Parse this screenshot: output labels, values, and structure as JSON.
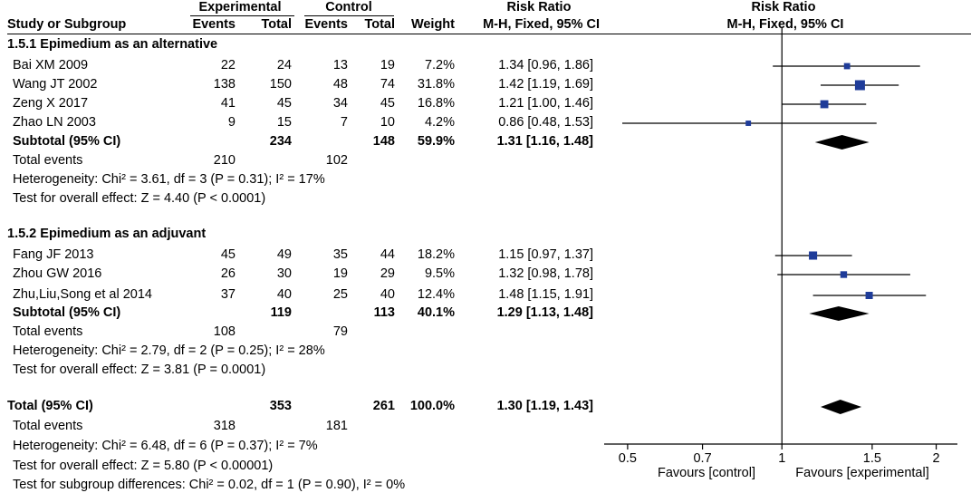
{
  "header": {
    "col_study": "Study or Subgroup",
    "group_experimental": "Experimental",
    "group_control": "Control",
    "col_events": "Events",
    "col_total": "Total",
    "col_weight": "Weight",
    "col_rr": "Risk Ratio",
    "col_rr_method": "M-H, Fixed, 95% CI",
    "plot_title": "Risk Ratio",
    "plot_method": "M-H, Fixed, 95% CI"
  },
  "subgroups": [
    {
      "title": "1.5.1 Epimedium as an alternative",
      "studies": [
        {
          "name": "Bai XM 2009",
          "exp_events": "22",
          "exp_total": "24",
          "ctl_events": "13",
          "ctl_total": "19",
          "weight": "7.2%",
          "ci_text": "1.34 [0.96, 1.86]"
        },
        {
          "name": "Wang JT 2002",
          "exp_events": "138",
          "exp_total": "150",
          "ctl_events": "48",
          "ctl_total": "74",
          "weight": "31.8%",
          "ci_text": "1.42 [1.19, 1.69]"
        },
        {
          "name": "Zeng X 2017",
          "exp_events": "41",
          "exp_total": "45",
          "ctl_events": "34",
          "ctl_total": "45",
          "weight": "16.8%",
          "ci_text": "1.21 [1.00, 1.46]"
        },
        {
          "name": "Zhao LN 2003",
          "exp_events": "9",
          "exp_total": "15",
          "ctl_events": "7",
          "ctl_total": "10",
          "weight": "4.2%",
          "ci_text": "0.86 [0.48, 1.53]"
        }
      ],
      "subtotal": {
        "label": "Subtotal (95% CI)",
        "exp_total": "234",
        "ctl_total": "148",
        "weight": "59.9%",
        "ci_text": "1.31 [1.16, 1.48]"
      },
      "total_events": {
        "label": "Total events",
        "exp": "210",
        "ctl": "102"
      },
      "heterogeneity": "Heterogeneity: Chi² = 3.61, df = 3 (P = 0.31); I² = 17%",
      "overall_effect": "Test for overall effect: Z = 4.40 (P < 0.0001)"
    },
    {
      "title": "1.5.2 Epimedium as an adjuvant",
      "studies": [
        {
          "name": "Fang JF 2013",
          "exp_events": "45",
          "exp_total": "49",
          "ctl_events": "35",
          "ctl_total": "44",
          "weight": "18.2%",
          "ci_text": "1.15 [0.97, 1.37]"
        },
        {
          "name": "Zhou GW 2016",
          "exp_events": "26",
          "exp_total": "30",
          "ctl_events": "19",
          "ctl_total": "29",
          "weight": "9.5%",
          "ci_text": "1.32 [0.98, 1.78]"
        },
        {
          "name": "Zhu,Liu,Song et al 2014",
          "exp_events": "37",
          "exp_total": "40",
          "ctl_events": "25",
          "ctl_total": "40",
          "weight": "12.4%",
          "ci_text": "1.48 [1.15, 1.91]"
        }
      ],
      "subtotal": {
        "label": "Subtotal (95% CI)",
        "exp_total": "119",
        "ctl_total": "113",
        "weight": "40.1%",
        "ci_text": "1.29 [1.13, 1.48]"
      },
      "total_events": {
        "label": "Total events",
        "exp": "108",
        "ctl": "79"
      },
      "heterogeneity": "Heterogeneity: Chi² = 2.79, df = 2 (P = 0.25); I² = 28%",
      "overall_effect": "Test for overall effect: Z = 3.81 (P = 0.0001)"
    }
  ],
  "total": {
    "label": "Total (95% CI)",
    "exp_total": "353",
    "ctl_total": "261",
    "weight": "100.0%",
    "ci_text": "1.30 [1.19, 1.43]",
    "total_events": {
      "label": "Total events",
      "exp": "318",
      "ctl": "181"
    },
    "heterogeneity": "Heterogeneity: Chi² = 6.48, df = 6 (P = 0.37); I² = 7%",
    "overall_effect": "Test for overall effect: Z = 5.80 (P < 0.00001)",
    "subgroup_diff": "Test for subgroup differences: Chi² = 0.02, df = 1 (P = 0.90), I² = 0%"
  },
  "axis": {
    "favours_left": "Favours [control]",
    "favours_right": "Favours [experimental]"
  },
  "colors": {
    "marker": "#1f3c99",
    "diamond": "#000000",
    "line": "#000000"
  },
  "chart_data": {
    "type": "forest",
    "x_scale": "log",
    "xlim": [
      0.45,
      2.2
    ],
    "xticks": [
      {
        "value": 0.5,
        "label": "0.5"
      },
      {
        "value": 0.7,
        "label": "0.7"
      },
      {
        "value": 1,
        "label": "1"
      },
      {
        "value": 1.5,
        "label": "1.5"
      },
      {
        "value": 2,
        "label": "2"
      }
    ],
    "null_line": 1,
    "studies": [
      {
        "name": "Bai XM 2009",
        "rr": 1.34,
        "lo": 0.96,
        "hi": 1.86,
        "weight": 7.2
      },
      {
        "name": "Wang JT 2002",
        "rr": 1.42,
        "lo": 1.19,
        "hi": 1.69,
        "weight": 31.8
      },
      {
        "name": "Zeng X 2017",
        "rr": 1.21,
        "lo": 1.0,
        "hi": 1.46,
        "weight": 16.8
      },
      {
        "name": "Zhao LN 2003",
        "rr": 0.86,
        "lo": 0.48,
        "hi": 1.53,
        "weight": 4.2
      },
      {
        "name": "Fang JF 2013",
        "rr": 1.15,
        "lo": 0.97,
        "hi": 1.37,
        "weight": 18.2
      },
      {
        "name": "Zhou GW 2016",
        "rr": 1.32,
        "lo": 0.98,
        "hi": 1.78,
        "weight": 9.5
      },
      {
        "name": "Zhu,Liu,Song et al 2014",
        "rr": 1.48,
        "lo": 1.15,
        "hi": 1.91,
        "weight": 12.4
      }
    ],
    "diamonds": [
      {
        "name": "Subtotal 1.5.1",
        "rr": 1.31,
        "lo": 1.16,
        "hi": 1.48
      },
      {
        "name": "Subtotal 1.5.2",
        "rr": 1.29,
        "lo": 1.13,
        "hi": 1.48
      },
      {
        "name": "Total",
        "rr": 1.3,
        "lo": 1.19,
        "hi": 1.43
      }
    ]
  }
}
